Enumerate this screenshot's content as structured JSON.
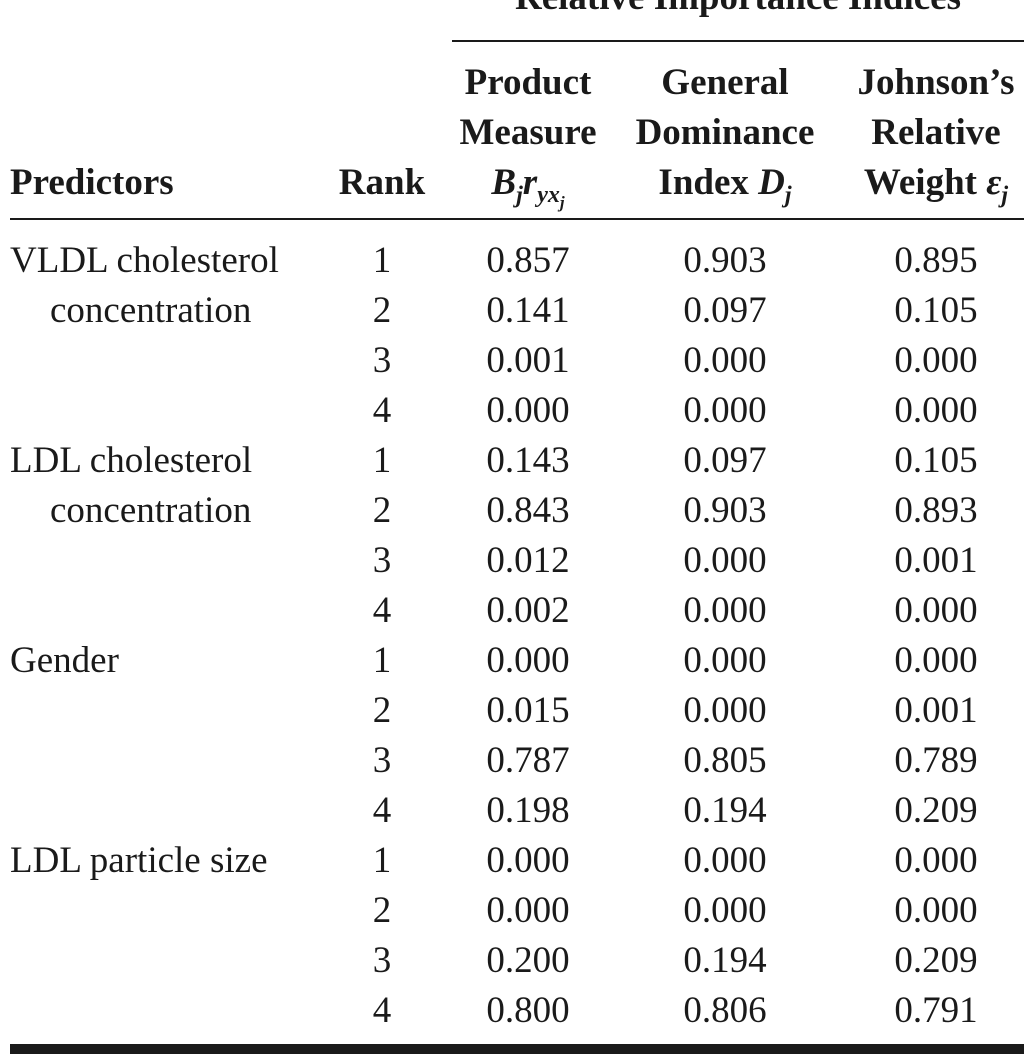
{
  "table": {
    "group_header": "Relative Importance Indices",
    "columns": {
      "predictors": "Predictors",
      "rank": "Rank",
      "product": {
        "line1": "Product",
        "line2": "Measure",
        "symbol": "B",
        "sub1": "j",
        "sym2": "r",
        "sub2": "yx",
        "sub3": "j"
      },
      "dominance": {
        "line1": "General",
        "line2": "Dominance",
        "line3": "Index ",
        "symbol": "D",
        "sub": "j"
      },
      "johnson": {
        "line1": "Johnson’s",
        "line2": "Relative",
        "line3": "Weight ",
        "symbol": "ε",
        "sub": "j"
      }
    },
    "rows": [
      {
        "predictor": "VLDL cholesterol",
        "rank": "1",
        "product": "0.857",
        "dominance": "0.903",
        "weight": "0.895"
      },
      {
        "predictor": "concentration",
        "rank": "2",
        "product": "0.141",
        "dominance": "0.097",
        "weight": "0.105"
      },
      {
        "predictor": "",
        "rank": "3",
        "product": "0.001",
        "dominance": "0.000",
        "weight": "0.000"
      },
      {
        "predictor": "",
        "rank": "4",
        "product": "0.000",
        "dominance": "0.000",
        "weight": "0.000"
      },
      {
        "predictor": "LDL cholesterol",
        "rank": "1",
        "product": "0.143",
        "dominance": "0.097",
        "weight": "0.105"
      },
      {
        "predictor": "concentration",
        "rank": "2",
        "product": "0.843",
        "dominance": "0.903",
        "weight": "0.893"
      },
      {
        "predictor": "",
        "rank": "3",
        "product": "0.012",
        "dominance": "0.000",
        "weight": "0.001"
      },
      {
        "predictor": "",
        "rank": "4",
        "product": "0.002",
        "dominance": "0.000",
        "weight": "0.000"
      },
      {
        "predictor": "Gender",
        "rank": "1",
        "product": "0.000",
        "dominance": "0.000",
        "weight": "0.000"
      },
      {
        "predictor": "",
        "rank": "2",
        "product": "0.015",
        "dominance": "0.000",
        "weight": "0.001"
      },
      {
        "predictor": "",
        "rank": "3",
        "product": "0.787",
        "dominance": "0.805",
        "weight": "0.789"
      },
      {
        "predictor": "",
        "rank": "4",
        "product": "0.198",
        "dominance": "0.194",
        "weight": "0.209"
      },
      {
        "predictor": "LDL particle size",
        "rank": "1",
        "product": "0.000",
        "dominance": "0.000",
        "weight": "0.000"
      },
      {
        "predictor": "",
        "rank": "2",
        "product": "0.000",
        "dominance": "0.000",
        "weight": "0.000"
      },
      {
        "predictor": "",
        "rank": "3",
        "product": "0.200",
        "dominance": "0.194",
        "weight": "0.209"
      },
      {
        "predictor": "",
        "rank": "4",
        "product": "0.800",
        "dominance": "0.806",
        "weight": "0.791"
      }
    ]
  }
}
